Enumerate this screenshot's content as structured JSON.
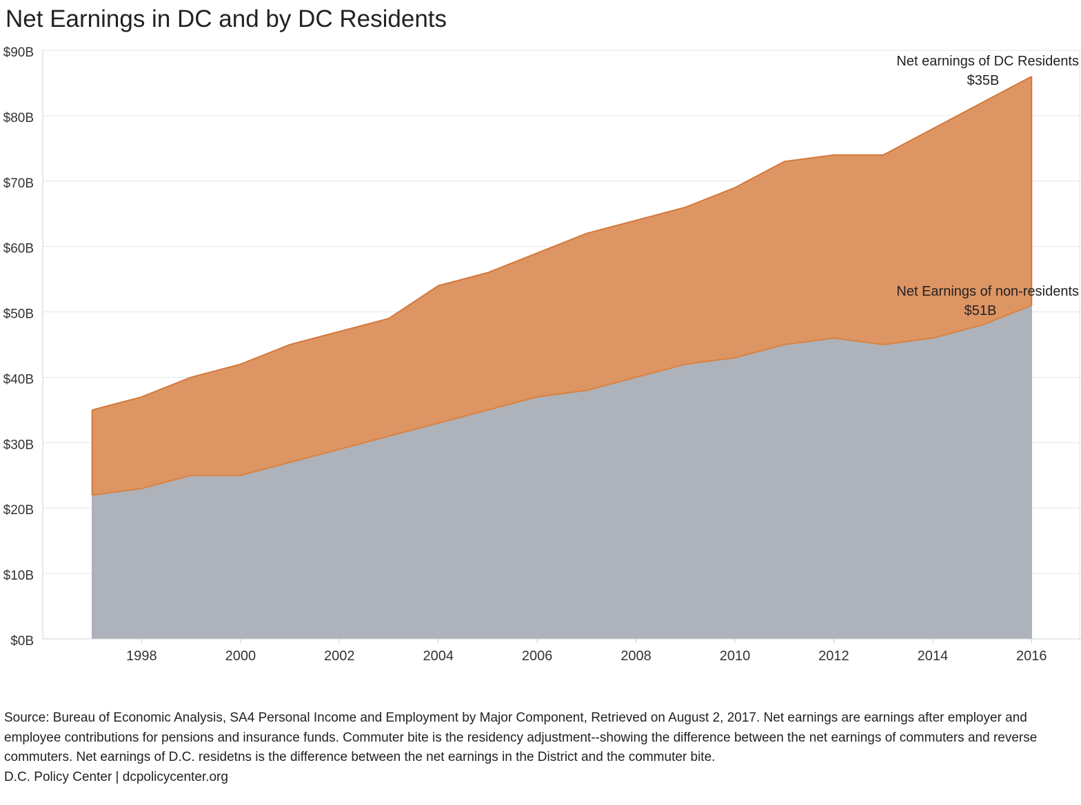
{
  "title": "Net Earnings in DC and by DC Residents",
  "chart_data": {
    "type": "area",
    "stacked": true,
    "x": [
      1997,
      1998,
      1999,
      2000,
      2001,
      2002,
      2003,
      2004,
      2005,
      2006,
      2007,
      2008,
      2009,
      2010,
      2011,
      2012,
      2013,
      2014,
      2015,
      2016
    ],
    "x_tick_labels": [
      "1998",
      "2000",
      "2002",
      "2004",
      "2006",
      "2008",
      "2010",
      "2012",
      "2014",
      "2016"
    ],
    "y_tick_labels": [
      "$0B",
      "$10B",
      "$20B",
      "$30B",
      "$40B",
      "$50B",
      "$60B",
      "$70B",
      "$80B",
      "$90B"
    ],
    "ylim": [
      0,
      90
    ],
    "grid": true,
    "series": [
      {
        "name": "Net Earnings of non-residents",
        "color": "#aeb2ba",
        "line_color": "#d9823f",
        "values": [
          22,
          23,
          25,
          25,
          27,
          29,
          31,
          33,
          35,
          37,
          38,
          40,
          42,
          43,
          45,
          46,
          45,
          46,
          48,
          51
        ]
      },
      {
        "name": "Net earnings of DC Residents",
        "color": "#de9564",
        "line_color": "#d4783a",
        "values": [
          13,
          14,
          15,
          17,
          18,
          18,
          18,
          21,
          21,
          22,
          24,
          24,
          24,
          26,
          28,
          28,
          29,
          32,
          34,
          35
        ],
        "total_values": [
          35,
          37,
          40,
          42,
          45,
          47,
          49,
          54,
          56,
          59,
          62,
          64,
          66,
          69,
          73,
          74,
          74,
          78,
          82,
          86
        ]
      }
    ],
    "annotations": [
      {
        "line1": "Net earnings of DC Residents",
        "line2": "$35B"
      },
      {
        "line1": "Net Earnings of non-residents",
        "line2": "$51B"
      }
    ]
  },
  "source": {
    "text": "Source: Bureau of Economic Analysis, SA4 Personal Income and Employment by Major Component, Retrieved on August 2, 2017. Net earnings are earnings after employer and employee contributions for pensions and insurance funds. Commuter bite is the residency adjustment--showing the difference between the net earnings of commuters and reverse commuters. Net earnings of D.C. residetns is the difference between the net earnings in the District and the commuter bite.",
    "credit": "D.C. Policy Center | dcpolicycenter.org"
  }
}
